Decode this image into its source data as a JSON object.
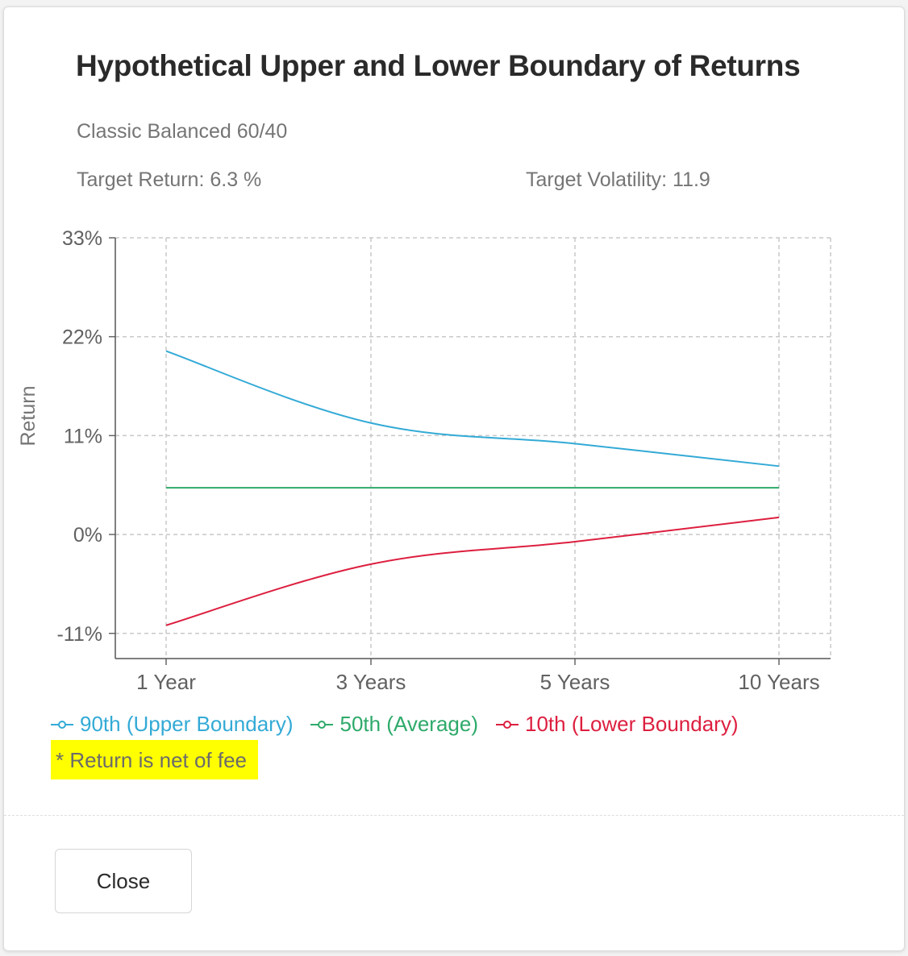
{
  "dialog": {
    "title": "Hypothetical Upper and Lower Boundary of Returns",
    "portfolio_name": "Classic Balanced 60/40",
    "target_return": "Target Return: 6.3 %",
    "target_volatility": "Target Volatility: 11.9",
    "fee_note": "* Return is net of fee",
    "close_label": "Close"
  },
  "chart_data": {
    "type": "line",
    "title": "",
    "xlabel": "",
    "ylabel": "Return",
    "categories": [
      "1 Year",
      "3 Years",
      "5 Years",
      "10 Years"
    ],
    "y_ticks": [
      33,
      22,
      11,
      0,
      -11
    ],
    "y_tick_labels": [
      "33%",
      "22%",
      "11%",
      "0%",
      "-11%"
    ],
    "ylim": [
      -13.8,
      33
    ],
    "grid": true,
    "legend_position": "bottom-left",
    "series": [
      {
        "name": "90th (Upper Boundary)",
        "color": "#33aad6",
        "values": [
          20.4,
          12.4,
          10.1,
          7.6
        ]
      },
      {
        "name": "50th (Average)",
        "color": "#2eaa6a",
        "values": [
          5.2,
          5.2,
          5.2,
          5.2
        ]
      },
      {
        "name": "10th (Lower Boundary)",
        "color": "#dd1f3f",
        "values": [
          -10.1,
          -3.3,
          -0.8,
          1.9
        ]
      }
    ]
  }
}
